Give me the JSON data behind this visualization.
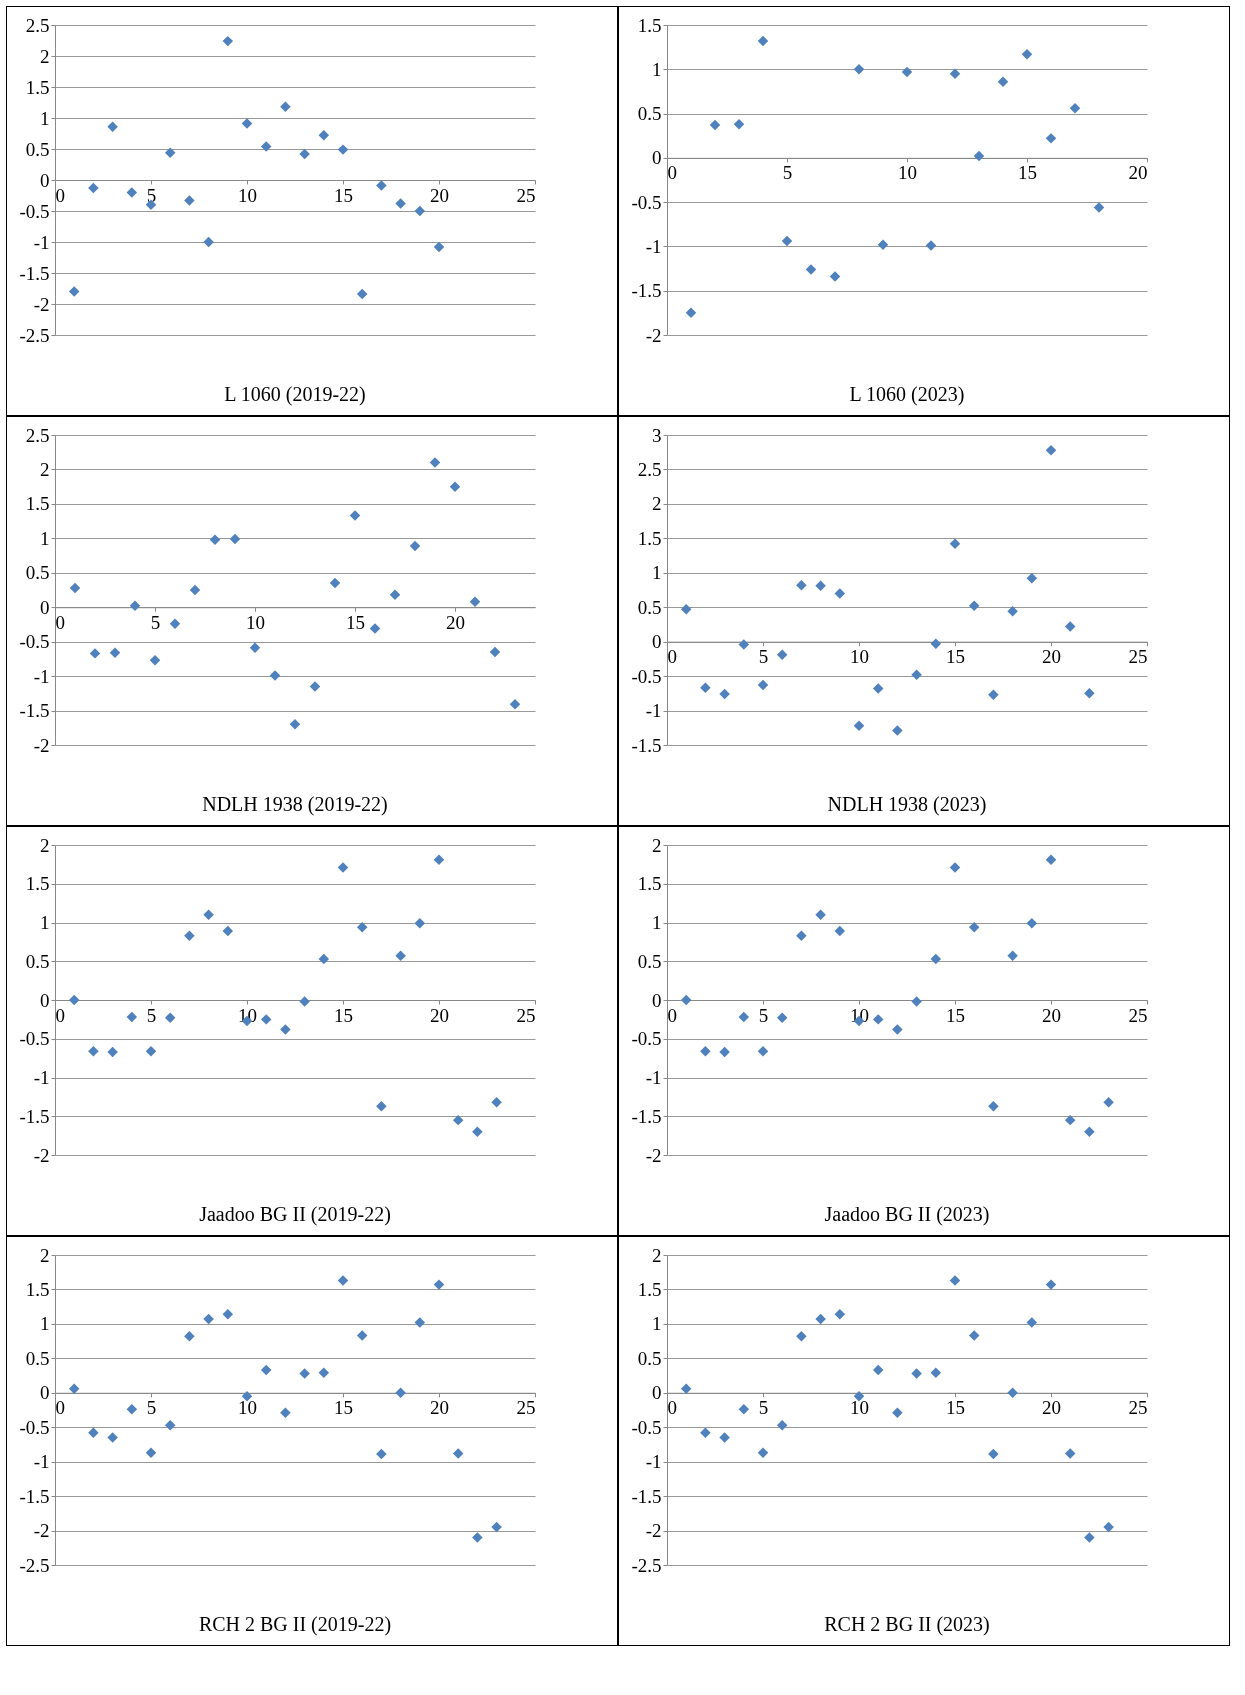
{
  "chart_data": [
    {
      "type": "scatter",
      "title": "L 1060 (2019-22)",
      "x": [
        1,
        2,
        3,
        4,
        5,
        6,
        7,
        8,
        9,
        10,
        11,
        12,
        13,
        14,
        15,
        16,
        17,
        18,
        19,
        20
      ],
      "values": [
        -1.8,
        -0.13,
        0.86,
        -0.2,
        -0.4,
        0.44,
        -0.33,
        -1.0,
        2.24,
        0.91,
        0.54,
        1.18,
        0.42,
        0.72,
        0.49,
        -1.84,
        -0.09,
        -0.38,
        -0.5,
        -1.08
      ],
      "color": "#4f81bd",
      "marker": "diamond",
      "xlim": [
        0,
        25
      ],
      "xticks": [
        0,
        5,
        10,
        15,
        20,
        25
      ],
      "ylim": [
        -2.5,
        2.5
      ],
      "yticks": [
        -2.5,
        -2,
        -1.5,
        -1,
        -0.5,
        0,
        0.5,
        1,
        1.5,
        2,
        2.5
      ],
      "grid": "y"
    },
    {
      "type": "scatter",
      "title": "L 1060 (2023)",
      "x": [
        1,
        2,
        3,
        4,
        5,
        6,
        7,
        8,
        9,
        10,
        11,
        12,
        13,
        14,
        15,
        16,
        17,
        18
      ],
      "values": [
        -1.75,
        0.37,
        0.38,
        1.32,
        -0.94,
        -1.26,
        -1.34,
        1.0,
        -0.98,
        0.97,
        -0.99,
        0.95,
        0.02,
        0.86,
        1.17,
        0.22,
        0.56,
        -0.56
      ],
      "color": "#4f81bd",
      "marker": "diamond",
      "xlim": [
        0,
        20
      ],
      "xticks": [
        0,
        5,
        10,
        15,
        20
      ],
      "ylim": [
        -2,
        1.5
      ],
      "yticks": [
        -2,
        -1.5,
        -1,
        -0.5,
        0,
        0.5,
        1,
        1.5
      ],
      "grid": "y"
    },
    {
      "type": "scatter",
      "title": "NDLH 1938 (2019-22)",
      "x": [
        1,
        2,
        3,
        4,
        5,
        6,
        7,
        8,
        9,
        10,
        11,
        12,
        13,
        14,
        15,
        16,
        17,
        18,
        19,
        20,
        21,
        22,
        23
      ],
      "values": [
        0.28,
        -0.67,
        -0.66,
        0.02,
        -0.77,
        -0.24,
        0.25,
        0.98,
        0.99,
        -0.59,
        -0.99,
        -1.7,
        -1.15,
        0.35,
        1.33,
        -0.31,
        0.18,
        0.89,
        2.1,
        1.75,
        0.08,
        -0.65,
        -1.41
      ],
      "color": "#4f81bd",
      "marker": "diamond",
      "xlim": [
        0,
        24
      ],
      "xticks": [
        0,
        5,
        10,
        15,
        20
      ],
      "ylim": [
        -2,
        2.5
      ],
      "yticks": [
        -2,
        -1.5,
        -1,
        -0.5,
        0,
        0.5,
        1,
        1.5,
        2,
        2.5
      ],
      "grid": "y"
    },
    {
      "type": "scatter",
      "title": "NDLH 1938 (2023)",
      "x": [
        1,
        2,
        3,
        4,
        5,
        6,
        7,
        8,
        9,
        10,
        11,
        12,
        13,
        14,
        15,
        16,
        17,
        18,
        19,
        20,
        21,
        22
      ],
      "values": [
        0.47,
        -0.67,
        -0.76,
        -0.04,
        -0.63,
        -0.19,
        0.82,
        0.81,
        0.7,
        -1.22,
        -0.68,
        -1.29,
        -0.48,
        -0.03,
        1.42,
        0.52,
        -0.77,
        0.44,
        0.92,
        2.78,
        0.22,
        -0.75
      ],
      "color": "#4f81bd",
      "marker": "diamond",
      "xlim": [
        0,
        25
      ],
      "xticks": [
        0,
        5,
        10,
        15,
        20,
        25
      ],
      "ylim": [
        -1.5,
        3
      ],
      "yticks": [
        -1.5,
        -1,
        -0.5,
        0,
        0.5,
        1,
        1.5,
        2,
        2.5,
        3
      ],
      "grid": "y"
    },
    {
      "type": "scatter",
      "title": "Jaadoo BG II (2019-22)",
      "x": [
        1,
        2,
        3,
        4,
        5,
        6,
        7,
        8,
        9,
        10,
        11,
        12,
        13,
        14,
        15,
        16,
        17,
        18,
        19,
        20,
        21,
        22,
        23
      ],
      "values": [
        0.0,
        -0.66,
        -0.67,
        -0.22,
        -0.66,
        -0.23,
        0.83,
        1.1,
        0.89,
        -0.27,
        -0.25,
        -0.38,
        -0.02,
        0.53,
        1.71,
        0.94,
        -1.37,
        0.57,
        0.99,
        1.81,
        -1.55,
        -1.7,
        -1.32
      ],
      "color": "#4f81bd",
      "marker": "diamond",
      "xlim": [
        0,
        25
      ],
      "xticks": [
        0,
        5,
        10,
        15,
        20,
        25
      ],
      "ylim": [
        -2,
        2
      ],
      "yticks": [
        -2,
        -1.5,
        -1,
        -0.5,
        0,
        0.5,
        1,
        1.5,
        2
      ],
      "grid": "y"
    },
    {
      "type": "scatter",
      "title": "Jaadoo BG II (2023)",
      "x": [
        1,
        2,
        3,
        4,
        5,
        6,
        7,
        8,
        9,
        10,
        11,
        12,
        13,
        14,
        15,
        16,
        17,
        18,
        19,
        20,
        21,
        22,
        23
      ],
      "values": [
        0.0,
        -0.66,
        -0.67,
        -0.22,
        -0.66,
        -0.23,
        0.83,
        1.1,
        0.89,
        -0.27,
        -0.25,
        -0.38,
        -0.02,
        0.53,
        1.71,
        0.94,
        -1.37,
        0.57,
        0.99,
        1.81,
        -1.55,
        -1.7,
        -1.32
      ],
      "color": "#4f81bd",
      "marker": "diamond",
      "xlim": [
        0,
        25
      ],
      "xticks": [
        0,
        5,
        10,
        15,
        20,
        25
      ],
      "ylim": [
        -2,
        2
      ],
      "yticks": [
        -2,
        -1.5,
        -1,
        -0.5,
        0,
        0.5,
        1,
        1.5,
        2
      ],
      "grid": "y"
    },
    {
      "type": "scatter",
      "title": "RCH 2 BG II (2019-22)",
      "x": [
        1,
        2,
        3,
        4,
        5,
        6,
        7,
        8,
        9,
        10,
        11,
        12,
        13,
        14,
        15,
        16,
        17,
        18,
        19,
        20,
        21,
        22,
        23
      ],
      "values": [
        0.06,
        -0.58,
        -0.65,
        -0.24,
        -0.87,
        -0.47,
        0.82,
        1.07,
        1.14,
        -0.05,
        0.33,
        -0.29,
        0.28,
        0.29,
        1.63,
        0.83,
        -0.89,
        0.0,
        1.02,
        1.57,
        -0.88,
        -2.1,
        -1.95
      ],
      "color": "#4f81bd",
      "marker": "diamond",
      "xlim": [
        0,
        25
      ],
      "xticks": [
        0,
        5,
        10,
        15,
        20,
        25
      ],
      "ylim": [
        -2.5,
        2
      ],
      "yticks": [
        -2.5,
        -2,
        -1.5,
        -1,
        -0.5,
        0,
        0.5,
        1,
        1.5,
        2
      ],
      "grid": "y"
    },
    {
      "type": "scatter",
      "title": "RCH 2 BG II (2023)",
      "x": [
        1,
        2,
        3,
        4,
        5,
        6,
        7,
        8,
        9,
        10,
        11,
        12,
        13,
        14,
        15,
        16,
        17,
        18,
        19,
        20,
        21,
        22,
        23
      ],
      "values": [
        0.06,
        -0.58,
        -0.65,
        -0.24,
        -0.87,
        -0.47,
        0.82,
        1.07,
        1.14,
        -0.05,
        0.33,
        -0.29,
        0.28,
        0.29,
        1.63,
        0.83,
        -0.89,
        0.0,
        1.02,
        1.57,
        -0.88,
        -2.1,
        -1.95
      ],
      "color": "#4f81bd",
      "marker": "diamond",
      "xlim": [
        0,
        25
      ],
      "xticks": [
        0,
        5,
        10,
        15,
        20,
        25
      ],
      "ylim": [
        -2.5,
        2
      ],
      "yticks": [
        -2.5,
        -2,
        -1.5,
        -1,
        -0.5,
        0,
        0.5,
        1,
        1.5,
        2
      ],
      "grid": "y"
    }
  ]
}
